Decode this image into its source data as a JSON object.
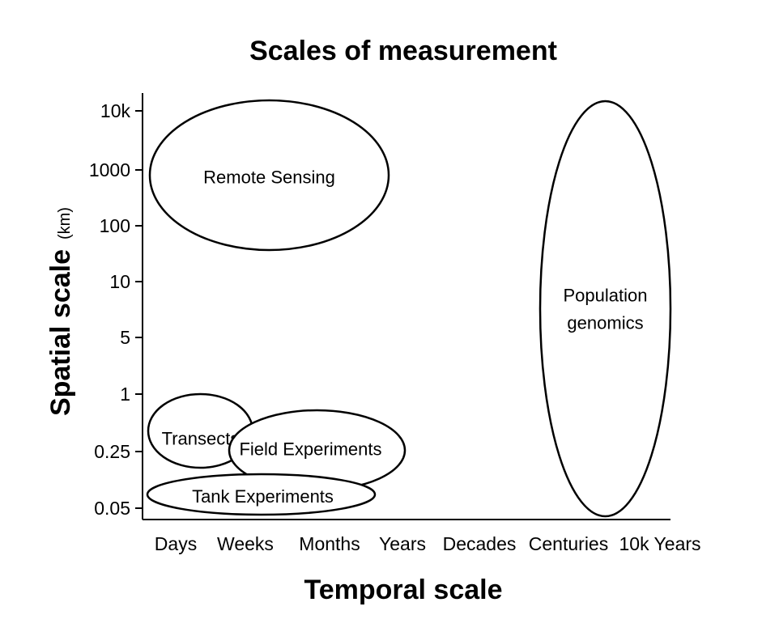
{
  "chart_data": {
    "type": "diagram",
    "title": "Scales of measurement",
    "xlabel": "Temporal scale",
    "ylabel": "Spatial scale",
    "ylabel_unit": "(km)",
    "x_ticks": [
      "Days",
      "Weeks",
      "Months",
      "Years",
      "Decades",
      "Centuries",
      "10k Years"
    ],
    "y_ticks": [
      "0.05",
      "0.25",
      "1",
      "5",
      "10",
      "100",
      "1000",
      "10k"
    ],
    "regions": [
      {
        "name": "Remote Sensing",
        "label_lines": [
          "Remote Sensing"
        ],
        "x_range": [
          "Days",
          "Years"
        ],
        "y_range": [
          "100",
          "10k"
        ]
      },
      {
        "name": "Population genomics",
        "label_lines": [
          "Population",
          "genomics"
        ],
        "x_range": [
          "Centuries",
          "10k Years"
        ],
        "y_range": [
          "0.05",
          "10k"
        ]
      },
      {
        "name": "Transects",
        "label_lines": [
          "Transects"
        ],
        "x_range": [
          "Days",
          "Weeks"
        ],
        "y_range": [
          "0.25",
          "1"
        ]
      },
      {
        "name": "Field Experiments",
        "label_lines": [
          "Field Experiments"
        ],
        "x_range": [
          "Weeks",
          "Years"
        ],
        "y_range": [
          "0.05",
          "1"
        ]
      },
      {
        "name": "Tank Experiments",
        "label_lines": [
          "Tank Experiments"
        ],
        "x_range": [
          "Days",
          "Years"
        ],
        "y_range": [
          "0.05",
          "0.25"
        ]
      }
    ]
  }
}
